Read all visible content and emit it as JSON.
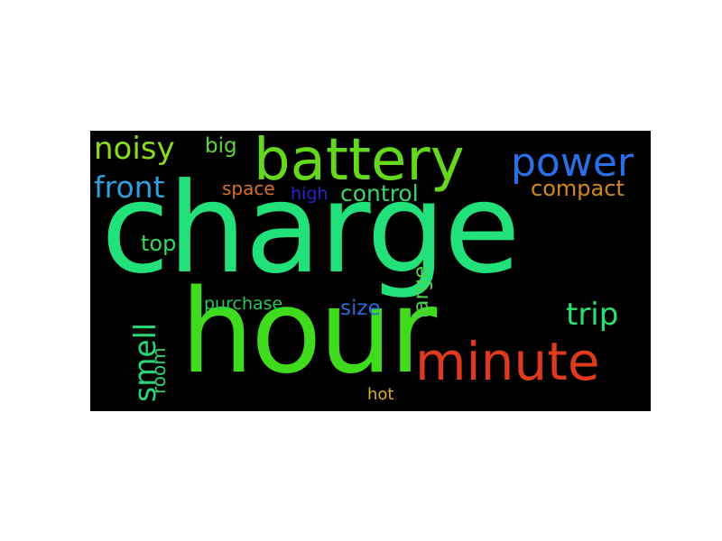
{
  "cloud": {
    "background": "#000000",
    "words": [
      {
        "id": "charge",
        "text": "charge",
        "color": "#22e07a"
      },
      {
        "id": "hour",
        "text": "hour",
        "color": "#3fdc1e"
      },
      {
        "id": "battery",
        "text": "battery",
        "color": "#63d81c"
      },
      {
        "id": "minute",
        "text": "minute",
        "color": "#e03a1e"
      },
      {
        "id": "power",
        "text": "power",
        "color": "#2a6fe8"
      },
      {
        "id": "noisy",
        "text": "noisy",
        "color": "#8bdc1a"
      },
      {
        "id": "front",
        "text": "front",
        "color": "#2f9fe0"
      },
      {
        "id": "big",
        "text": "big",
        "color": "#5fd43a"
      },
      {
        "id": "space",
        "text": "space",
        "color": "#d8702a"
      },
      {
        "id": "high",
        "text": "high",
        "color": "#3020c8"
      },
      {
        "id": "control",
        "text": "control",
        "color": "#3fd46a"
      },
      {
        "id": "compact",
        "text": "compact",
        "color": "#d08a1a"
      },
      {
        "id": "top",
        "text": "top",
        "color": "#36d860"
      },
      {
        "id": "trip",
        "text": "trip",
        "color": "#2ae070"
      },
      {
        "id": "large",
        "text": "large",
        "color": "#50d050"
      },
      {
        "id": "purchase",
        "text": "purchase",
        "color": "#28c85a"
      },
      {
        "id": "size",
        "text": "size",
        "color": "#2a6ad8"
      },
      {
        "id": "smell",
        "text": "smell",
        "color": "#28d878"
      },
      {
        "id": "room",
        "text": "room",
        "color": "#30d070"
      },
      {
        "id": "hot",
        "text": "hot",
        "color": "#d8b020"
      }
    ]
  }
}
